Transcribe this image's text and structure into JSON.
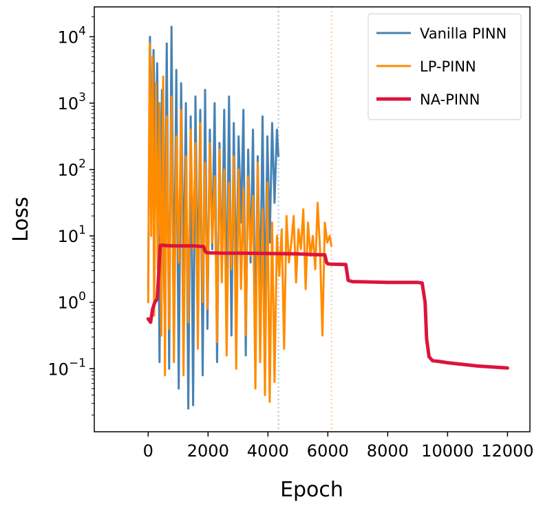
{
  "chart_data": {
    "type": "line",
    "title": "",
    "xlabel": "Epoch",
    "ylabel": "Loss",
    "xlim": [
      -1800,
      12750
    ],
    "ylim_log10": [
      -1.95,
      4.45
    ],
    "yscale": "log",
    "grid": false,
    "legend_placement": "top-right",
    "x_ticks": [
      0,
      2000,
      4000,
      6000,
      8000,
      10000,
      12000
    ],
    "x_tick_labels": [
      "0",
      "2000",
      "4000",
      "6000",
      "8000",
      "10000",
      "12000"
    ],
    "y_ticks": [
      {
        "value": 0.1,
        "base": "10",
        "exp": "−1"
      },
      {
        "value": 1,
        "base": "10",
        "exp": "0"
      },
      {
        "value": 10,
        "base": "10",
        "exp": "1"
      },
      {
        "value": 100,
        "base": "10",
        "exp": "2"
      },
      {
        "value": 1000,
        "base": "10",
        "exp": "3"
      },
      {
        "value": 10000,
        "base": "10",
        "exp": "4"
      }
    ],
    "vlines": [
      {
        "x": 4350,
        "color": "#9ec1e0",
        "style": "dotted"
      },
      {
        "x": 6120,
        "color": "#ffc58a",
        "style": "dotted"
      }
    ],
    "series": [
      {
        "name": "Vanilla PINN",
        "color": "#4682b4",
        "width": 3,
        "x": [
          0,
          60,
          120,
          180,
          240,
          300,
          380,
          460,
          540,
          620,
          700,
          780,
          860,
          940,
          1020,
          1100,
          1180,
          1260,
          1340,
          1420,
          1500,
          1580,
          1660,
          1740,
          1820,
          1900,
          1980,
          2060,
          2140,
          2220,
          2300,
          2380,
          2460,
          2540,
          2620,
          2700,
          2780,
          2860,
          2940,
          3020,
          3100,
          3180,
          3260,
          3340,
          3420,
          3500,
          3580,
          3660,
          3740,
          3820,
          3900,
          3980,
          4060,
          4140,
          4220,
          4300,
          4350
        ],
        "y_log10": [
          0.2,
          4.0,
          1.5,
          3.8,
          2.0,
          3.6,
          -0.9,
          3.2,
          0.0,
          3.9,
          -1.0,
          4.15,
          -0.2,
          3.5,
          -1.3,
          3.3,
          0.3,
          3.0,
          -1.6,
          2.8,
          -1.55,
          3.1,
          0.1,
          2.9,
          -1.1,
          3.2,
          -0.4,
          2.6,
          0.8,
          3.0,
          -0.9,
          2.4,
          0.4,
          2.9,
          -0.3,
          3.1,
          -0.5,
          2.7,
          0.1,
          2.5,
          1.2,
          2.9,
          -0.8,
          2.3,
          0.6,
          2.6,
          -0.6,
          2.2,
          0.0,
          2.8,
          -0.2,
          2.5,
          0.9,
          2.7,
          1.5,
          2.6,
          2.2
        ]
      },
      {
        "name": "LP-PINN",
        "color": "#ff8c00",
        "width": 3,
        "x": [
          0,
          50,
          100,
          150,
          200,
          260,
          320,
          380,
          440,
          500,
          560,
          620,
          700,
          780,
          860,
          940,
          1020,
          1100,
          1180,
          1260,
          1340,
          1420,
          1500,
          1580,
          1660,
          1740,
          1820,
          1900,
          1980,
          2060,
          2140,
          2220,
          2300,
          2380,
          2460,
          2540,
          2620,
          2700,
          2780,
          2860,
          2940,
          3020,
          3100,
          3180,
          3260,
          3340,
          3420,
          3500,
          3580,
          3660,
          3740,
          3820,
          3900,
          3980,
          4060,
          4140,
          4220,
          4300,
          4380,
          4460,
          4540,
          4620,
          4700,
          4780,
          4860,
          4940,
          5020,
          5100,
          5180,
          5260,
          5340,
          5420,
          5500,
          5580,
          5660,
          5740,
          5820,
          5900,
          5980,
          6060,
          6120
        ],
        "y_log10": [
          0.0,
          3.9,
          1.0,
          3.7,
          -0.2,
          3.3,
          0.5,
          3.0,
          -0.5,
          3.4,
          -1.1,
          2.8,
          -0.4,
          3.1,
          -0.9,
          2.5,
          0.6,
          2.9,
          -1.1,
          2.2,
          -0.3,
          2.6,
          0.8,
          2.4,
          -0.7,
          2.7,
          0.0,
          2.1,
          -0.1,
          2.4,
          0.9,
          1.9,
          -0.6,
          2.3,
          0.3,
          2.0,
          -0.8,
          1.8,
          0.5,
          2.2,
          -1.0,
          2.0,
          0.2,
          1.7,
          -0.5,
          1.9,
          0.7,
          1.6,
          -1.3,
          2.1,
          -0.9,
          1.4,
          -1.4,
          1.8,
          -1.5,
          1.2,
          -1.2,
          1.0,
          0.4,
          1.1,
          -0.7,
          1.3,
          0.6,
          0.9,
          1.3,
          0.3,
          1.1,
          0.8,
          1.4,
          0.2,
          1.2,
          0.7,
          1.0,
          0.5,
          1.5,
          0.8,
          -0.5,
          1.2,
          0.9,
          1.0,
          0.85
        ]
      },
      {
        "name": "NA-PINN",
        "color": "#dc143c",
        "width": 5,
        "x": [
          0,
          80,
          150,
          220,
          300,
          360,
          400,
          430,
          800,
          1500,
          1850,
          1900,
          1950,
          2000,
          2500,
          3000,
          4000,
          5000,
          5500,
          5900,
          5960,
          6000,
          6100,
          6600,
          6640,
          6680,
          6750,
          6850,
          7000,
          8000,
          9000,
          9150,
          9250,
          9300,
          9380,
          9500,
          9700,
          10000,
          11000,
          12000
        ],
        "y_log10": [
          -0.25,
          -0.3,
          -0.1,
          0.0,
          0.05,
          0.5,
          0.85,
          0.86,
          0.85,
          0.85,
          0.84,
          0.77,
          0.75,
          0.745,
          0.74,
          0.74,
          0.735,
          0.73,
          0.72,
          0.715,
          0.6,
          0.58,
          0.575,
          0.57,
          0.45,
          0.33,
          0.32,
          0.31,
          0.31,
          0.3,
          0.3,
          0.29,
          0.0,
          -0.55,
          -0.82,
          -0.88,
          -0.89,
          -0.91,
          -0.96,
          -0.99
        ]
      }
    ]
  }
}
